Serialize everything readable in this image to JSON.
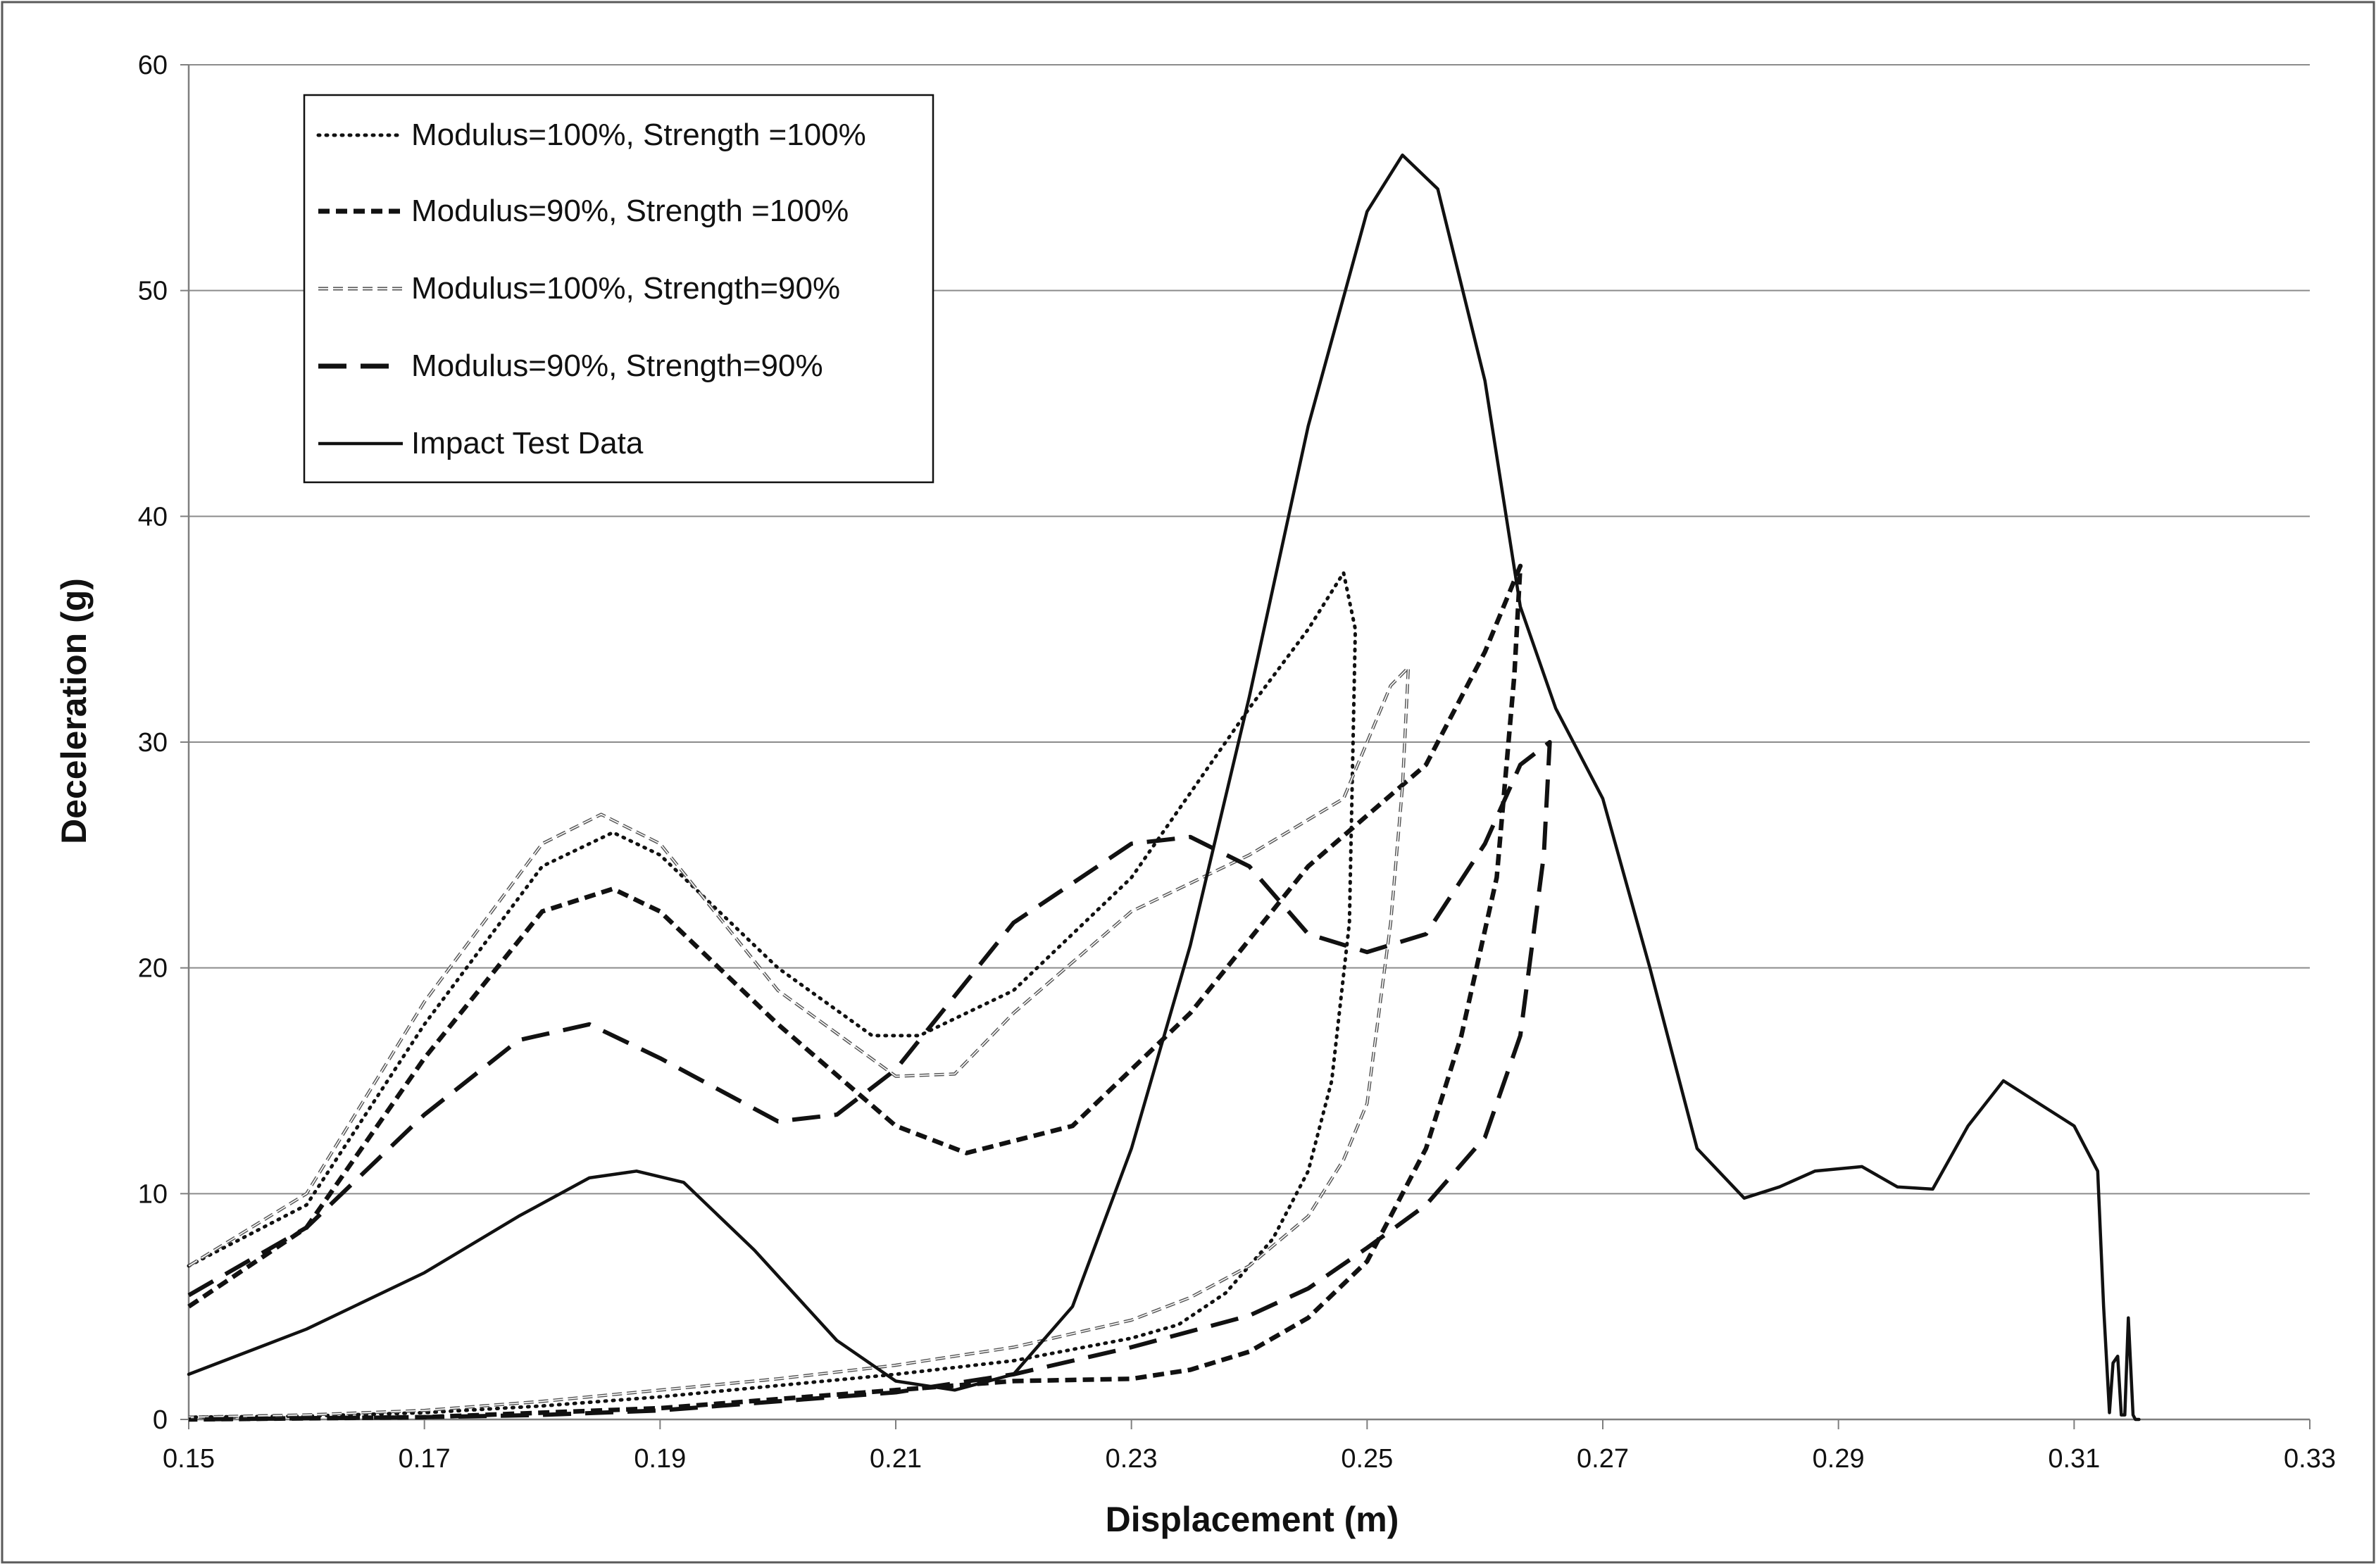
{
  "chart_data": {
    "type": "line",
    "title": "",
    "xlabel": "Displacement (m)",
    "ylabel": "Deceleration (g)",
    "xlim": [
      0.15,
      0.33
    ],
    "ylim": [
      0,
      60
    ],
    "xticks": [
      "0.15",
      "0.17",
      "0.19",
      "0.21",
      "0.23",
      "0.25",
      "0.27",
      "0.29",
      "0.31",
      "0.33"
    ],
    "yticks": [
      "0",
      "10",
      "20",
      "30",
      "40",
      "50",
      "60"
    ],
    "grid": "horizontal",
    "legend_position": "top-left",
    "series": [
      {
        "name": "Modulus=100%, Strength =100%",
        "style": "dotted",
        "color": "#111111",
        "x": [
          0.15,
          0.16,
          0.17,
          0.18,
          0.186,
          0.19,
          0.2,
          0.208,
          0.212,
          0.22,
          0.23,
          0.24,
          0.245,
          0.248,
          0.249,
          0.2485,
          0.247,
          0.245,
          0.242,
          0.238,
          0.234,
          0.23,
          0.22,
          0.21,
          0.2,
          0.19,
          0.18,
          0.17,
          0.16,
          0.15
        ],
        "y": [
          6.8,
          9.5,
          17.5,
          24.5,
          26.0,
          25.0,
          20.0,
          17.0,
          17.0,
          19.0,
          24.0,
          31.5,
          35.0,
          37.5,
          35.0,
          22.0,
          15.0,
          11.0,
          8.0,
          5.6,
          4.2,
          3.6,
          2.6,
          2.0,
          1.5,
          1.0,
          0.6,
          0.3,
          0.15,
          0.1
        ]
      },
      {
        "name": "Modulus=90%, Strength =100%",
        "style": "dashed-short",
        "color": "#111111",
        "x": [
          0.15,
          0.16,
          0.17,
          0.18,
          0.186,
          0.19,
          0.2,
          0.21,
          0.216,
          0.225,
          0.235,
          0.245,
          0.255,
          0.26,
          0.263,
          0.2625,
          0.261,
          0.258,
          0.255,
          0.25,
          0.245,
          0.24,
          0.235,
          0.23,
          0.22,
          0.21,
          0.2,
          0.19,
          0.18,
          0.17,
          0.16,
          0.15
        ],
        "y": [
          5.0,
          8.5,
          16.0,
          22.5,
          23.5,
          22.5,
          17.5,
          13.0,
          11.8,
          13.0,
          18.0,
          24.5,
          29.0,
          34.0,
          37.8,
          33.0,
          24.0,
          17.0,
          12.0,
          7.0,
          4.5,
          3.0,
          2.2,
          1.8,
          1.7,
          1.3,
          0.9,
          0.5,
          0.3,
          0.1,
          0.05,
          0.0
        ]
      },
      {
        "name": "Modulus=100%, Strength=90%",
        "style": "double-dash",
        "color": "#555555",
        "x": [
          0.15,
          0.16,
          0.17,
          0.18,
          0.185,
          0.19,
          0.2,
          0.21,
          0.215,
          0.22,
          0.23,
          0.24,
          0.248,
          0.252,
          0.2535,
          0.253,
          0.252,
          0.25,
          0.248,
          0.245,
          0.24,
          0.235,
          0.23,
          0.22,
          0.21,
          0.2,
          0.19,
          0.18,
          0.17,
          0.16,
          0.15
        ],
        "y": [
          6.8,
          10.0,
          18.5,
          25.5,
          26.8,
          25.5,
          19.0,
          15.2,
          15.3,
          18.0,
          22.5,
          25.0,
          27.5,
          32.5,
          33.3,
          28.0,
          22.0,
          14.0,
          11.5,
          9.0,
          6.8,
          5.4,
          4.4,
          3.2,
          2.4,
          1.8,
          1.3,
          0.8,
          0.4,
          0.2,
          0.1
        ]
      },
      {
        "name": "Modulus=90%, Strength=90%",
        "style": "dashed-long",
        "color": "#111111",
        "x": [
          0.15,
          0.16,
          0.17,
          0.178,
          0.184,
          0.19,
          0.2,
          0.205,
          0.21,
          0.22,
          0.23,
          0.235,
          0.24,
          0.245,
          0.25,
          0.255,
          0.26,
          0.263,
          0.2655,
          0.265,
          0.263,
          0.26,
          0.255,
          0.25,
          0.245,
          0.24,
          0.23,
          0.22,
          0.21,
          0.2,
          0.19,
          0.18,
          0.17,
          0.16,
          0.15
        ],
        "y": [
          5.5,
          8.5,
          13.5,
          16.8,
          17.5,
          16.0,
          13.2,
          13.5,
          15.5,
          22.0,
          25.5,
          25.8,
          24.5,
          21.5,
          20.7,
          21.5,
          25.5,
          29.0,
          30.0,
          25.0,
          17.0,
          12.5,
          9.5,
          7.6,
          5.8,
          4.6,
          3.2,
          2.0,
          1.2,
          0.8,
          0.4,
          0.2,
          0.1,
          0.05,
          0.0
        ]
      },
      {
        "name": "Impact Test Data",
        "style": "solid",
        "color": "#111111",
        "x": [
          0.15,
          0.16,
          0.17,
          0.178,
          0.184,
          0.188,
          0.192,
          0.198,
          0.205,
          0.21,
          0.215,
          0.22,
          0.225,
          0.23,
          0.235,
          0.24,
          0.245,
          0.25,
          0.253,
          0.256,
          0.26,
          0.263,
          0.266,
          0.27,
          0.274,
          0.278,
          0.282,
          0.285,
          0.288,
          0.292,
          0.295,
          0.298,
          0.301,
          0.304,
          0.307,
          0.31,
          0.312,
          0.3125,
          0.313,
          0.3133,
          0.3137,
          0.314,
          0.3143,
          0.3146,
          0.315,
          0.3152,
          0.3155
        ],
        "y": [
          2.0,
          4.0,
          6.5,
          9.0,
          10.7,
          11.0,
          10.5,
          7.5,
          3.5,
          1.7,
          1.3,
          2.0,
          5.0,
          12.0,
          21.0,
          32.0,
          44.0,
          53.5,
          56.0,
          54.5,
          46.0,
          36.0,
          31.5,
          27.5,
          20.0,
          12.0,
          9.8,
          10.3,
          11.0,
          11.2,
          10.3,
          10.2,
          13.0,
          15.0,
          14.0,
          13.0,
          11.0,
          5.0,
          0.3,
          2.5,
          2.8,
          0.2,
          0.2,
          4.5,
          0.2,
          0.0,
          0.0
        ]
      }
    ]
  },
  "colors": {
    "axis": "#7f7f7f",
    "grid": "#8c8c8c",
    "ink": "#111111",
    "frame": "#5a5a5a"
  }
}
